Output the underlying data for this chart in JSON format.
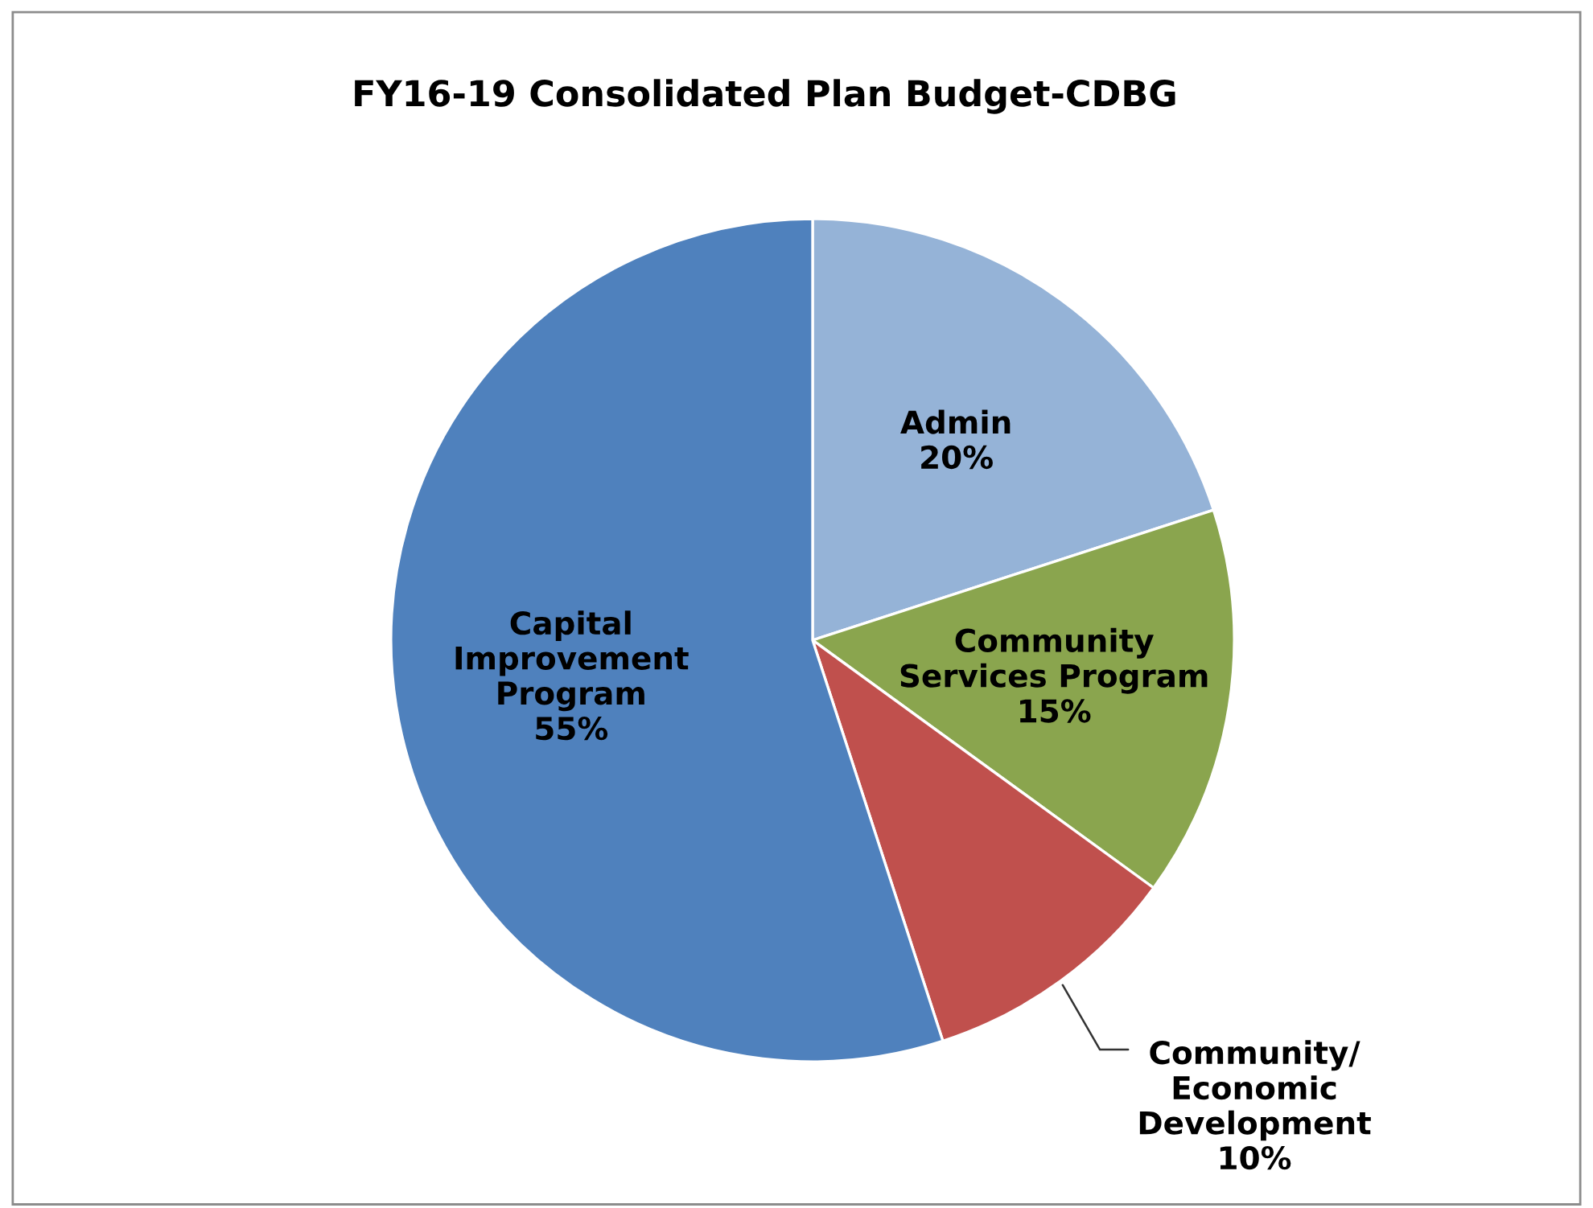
{
  "chart_data": {
    "type": "pie",
    "title": "FY16-19 Consolidated Plan Budget-CDBG",
    "categories": [
      "Admin",
      "Community\nServices Program",
      "Community/\nEconomic\nDevelopment",
      "Capital\nImprovement\nProgram"
    ],
    "values": [
      20,
      15,
      10,
      55
    ],
    "colors": [
      "#95b3d7",
      "#8aa54e",
      "#c0504d",
      "#4f81bd"
    ],
    "value_labels": [
      "20%",
      "15%",
      "10%",
      "55%"
    ]
  }
}
